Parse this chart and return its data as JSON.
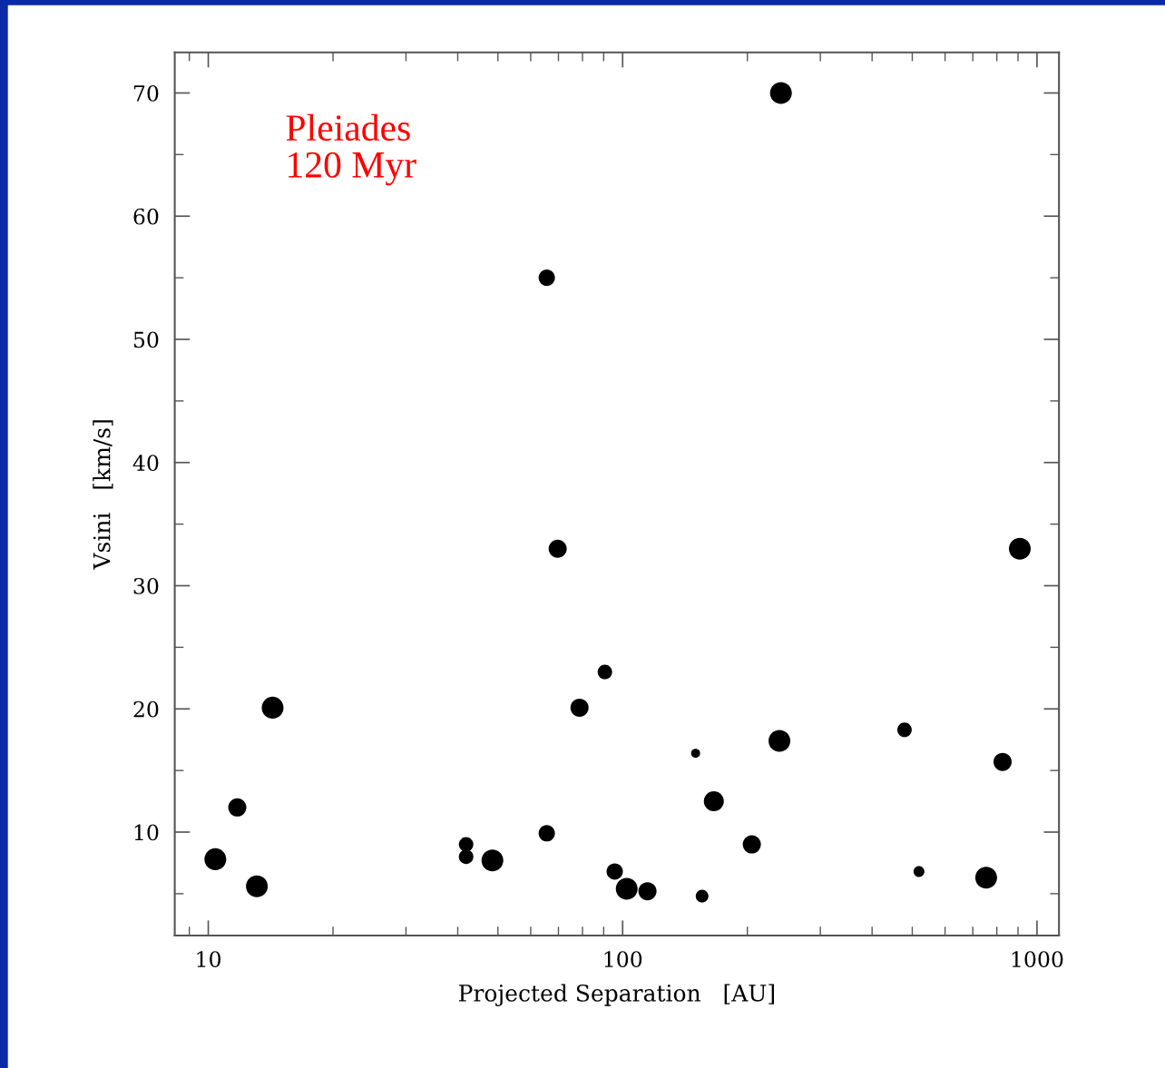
{
  "chart_data": {
    "type": "bubble",
    "xlabel": "Projected Separation   [AU]",
    "ylabel": "Vsini   [km/s]",
    "annotations": [
      "Pleiades\n120 Myr"
    ],
    "log": "x",
    "grid": false,
    "legend": false,
    "x": [
      10.4,
      11.75,
      13.1,
      14.3,
      41.9,
      41.9,
      48.5,
      65.6,
      65.6,
      69.7,
      78.7,
      90.6,
      95.7,
      102.3,
      114.8,
      150,
      155.5,
      166,
      205,
      239,
      241,
      479,
      519,
      754,
      826,
      909
    ],
    "series": [
      {
        "color": "#000000",
        "values": [
          7.8,
          12.0,
          5.6,
          20.1,
          9.0,
          8.0,
          7.7,
          55.0,
          9.9,
          33.0,
          20.1,
          23.0,
          6.8,
          5.4,
          5.2,
          16.4,
          4.8,
          12.5,
          9.0,
          17.4,
          70.0,
          18.3,
          6.8,
          6.3,
          15.7,
          33.0
        ],
        "sizes": [
          1,
          0.69,
          1,
          1,
          0.44,
          0.44,
          1,
          0.56,
          0.56,
          0.69,
          0.69,
          0.44,
          0.56,
          1,
          0.69,
          0.17,
          0.34,
          0.84,
          0.69,
          1,
          1,
          0.44,
          0.25,
          1,
          0.69,
          1
        ]
      }
    ],
    "xlim": [
      8.3,
      1130
    ],
    "ylim": [
      1.6,
      73.3
    ],
    "xticks": [
      10,
      100,
      1000,
      {
        "value": 20,
        "label": null
      },
      {
        "value": 30,
        "label": null
      },
      {
        "value": 40,
        "label": null
      },
      {
        "value": 50,
        "label": null
      },
      {
        "value": 60,
        "label": null
      },
      {
        "value": 70,
        "label": null
      },
      {
        "value": 80,
        "label": null
      },
      {
        "value": 90,
        "label": null
      },
      {
        "value": 200,
        "label": null
      },
      {
        "value": 300,
        "label": null
      },
      {
        "value": 400,
        "label": null
      },
      {
        "value": 500,
        "label": null
      },
      {
        "value": 600,
        "label": null
      },
      {
        "value": 700,
        "label": null
      },
      {
        "value": 800,
        "label": null
      },
      {
        "value": 900,
        "label": null
      },
      {
        "value": 9,
        "label": null
      }
    ],
    "yticks": [
      10,
      20,
      30,
      40,
      50,
      60,
      70,
      {
        "value": 5,
        "label": null
      },
      {
        "value": 15,
        "label": null
      },
      {
        "value": 25,
        "label": null
      },
      {
        "value": 35,
        "label": null
      },
      {
        "value": 45,
        "label": null
      },
      {
        "value": 55,
        "label": null
      },
      {
        "value": 65,
        "label": null
      }
    ]
  }
}
